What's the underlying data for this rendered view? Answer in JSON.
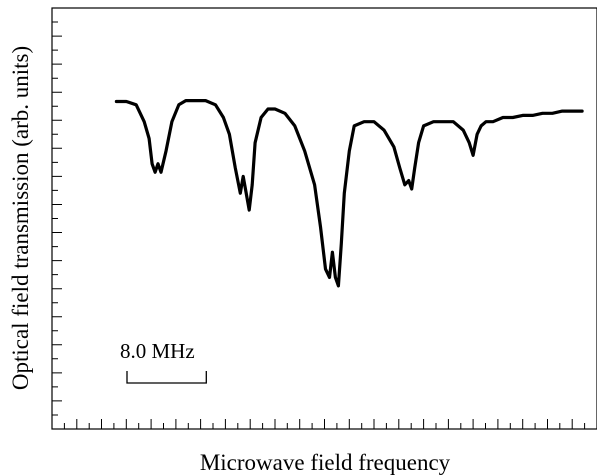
{
  "chart_data": {
    "type": "line",
    "title": "",
    "xlabel": "Microwave field frequency",
    "ylabel": "Optical field transmission  (arb. units)",
    "scale_bar_label": "8.0 MHz",
    "scale_bar_mhz": 8.0,
    "x_unit": "MHz",
    "xlim": [
      -6.5,
      48.5
    ],
    "ylim": [
      0,
      1
    ],
    "grid": false,
    "legend": "none",
    "line_color": "#000000",
    "series": [
      {
        "x": [
          0.0,
          1.0,
          2.0,
          2.8,
          3.3,
          3.6,
          3.9,
          4.2,
          4.5,
          5.0,
          5.6,
          6.3,
          7.0,
          8.0,
          9.0,
          10.0,
          10.8,
          11.4,
          12.0,
          12.5,
          12.8,
          13.1,
          13.4,
          13.7,
          14.0,
          14.6,
          15.3,
          16.0,
          17.0,
          18.0,
          19.0,
          20.0,
          20.6,
          21.1,
          21.5,
          21.8,
          22.1,
          22.4,
          22.7,
          23.0,
          23.5,
          24.0,
          25.0,
          26.0,
          27.0,
          28.0,
          28.6,
          29.1,
          29.5,
          29.8,
          30.1,
          30.5,
          31.0,
          32.0,
          33.0,
          34.0,
          35.0,
          35.6,
          36.0,
          36.4,
          36.8,
          37.3,
          38.0,
          39.0,
          40.0,
          41.0,
          42.0,
          43.0,
          44.0,
          45.0,
          46.0,
          47.0
        ],
        "y": [
          0.778,
          0.778,
          0.77,
          0.73,
          0.69,
          0.63,
          0.61,
          0.63,
          0.61,
          0.66,
          0.73,
          0.77,
          0.78,
          0.78,
          0.78,
          0.77,
          0.74,
          0.7,
          0.62,
          0.56,
          0.6,
          0.56,
          0.52,
          0.58,
          0.68,
          0.74,
          0.76,
          0.76,
          0.75,
          0.72,
          0.66,
          0.58,
          0.48,
          0.38,
          0.36,
          0.42,
          0.36,
          0.34,
          0.44,
          0.56,
          0.66,
          0.72,
          0.73,
          0.73,
          0.71,
          0.67,
          0.62,
          0.58,
          0.59,
          0.57,
          0.62,
          0.68,
          0.72,
          0.73,
          0.73,
          0.73,
          0.71,
          0.68,
          0.65,
          0.7,
          0.72,
          0.73,
          0.73,
          0.74,
          0.74,
          0.745,
          0.745,
          0.75,
          0.75,
          0.755,
          0.755,
          0.755
        ]
      }
    ]
  }
}
